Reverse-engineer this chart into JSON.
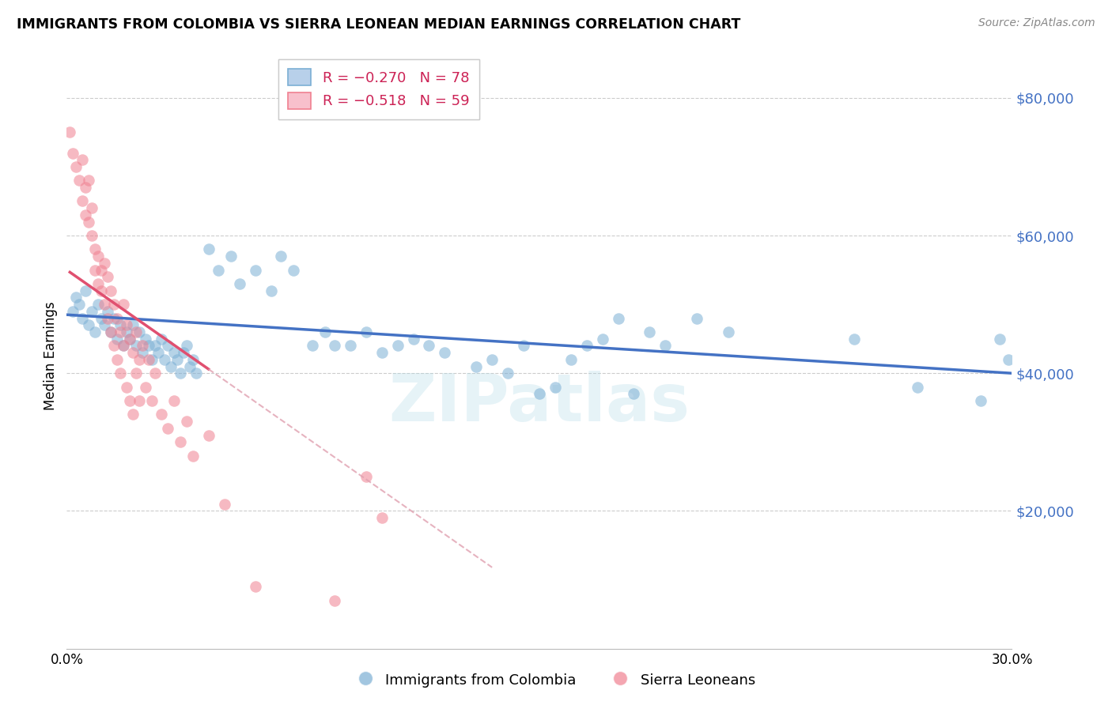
{
  "title": "IMMIGRANTS FROM COLOMBIA VS SIERRA LEONEAN MEDIAN EARNINGS CORRELATION CHART",
  "source": "Source: ZipAtlas.com",
  "ylabel": "Median Earnings",
  "xlim": [
    0.0,
    0.3
  ],
  "ylim": [
    0,
    85000
  ],
  "yticks": [
    20000,
    40000,
    60000,
    80000
  ],
  "ytick_labels": [
    "$20,000",
    "$40,000",
    "$60,000",
    "$80,000"
  ],
  "colombia_legend": "Immigrants from Colombia",
  "sierraleone_legend": "Sierra Leoneans",
  "colombia_color": "#7bafd4",
  "sierraleone_color": "#f08090",
  "trendline_colombia_color": "#4472c4",
  "trendline_sierraleone_color": "#e05070",
  "trendline_sierraleone_dashed_color": "#e0a0b0",
  "watermark": "ZIPatlas",
  "colombia_R": -0.27,
  "colombia_N": 78,
  "sierraleone_R": -0.518,
  "sierraleone_N": 59,
  "colombia_points": [
    [
      0.002,
      49000
    ],
    [
      0.003,
      51000
    ],
    [
      0.004,
      50000
    ],
    [
      0.005,
      48000
    ],
    [
      0.006,
      52000
    ],
    [
      0.007,
      47000
    ],
    [
      0.008,
      49000
    ],
    [
      0.009,
      46000
    ],
    [
      0.01,
      50000
    ],
    [
      0.011,
      48000
    ],
    [
      0.012,
      47000
    ],
    [
      0.013,
      49000
    ],
    [
      0.014,
      46000
    ],
    [
      0.015,
      48000
    ],
    [
      0.016,
      45000
    ],
    [
      0.017,
      47000
    ],
    [
      0.018,
      44000
    ],
    [
      0.019,
      46000
    ],
    [
      0.02,
      45000
    ],
    [
      0.021,
      47000
    ],
    [
      0.022,
      44000
    ],
    [
      0.023,
      46000
    ],
    [
      0.024,
      43000
    ],
    [
      0.025,
      45000
    ],
    [
      0.026,
      44000
    ],
    [
      0.027,
      42000
    ],
    [
      0.028,
      44000
    ],
    [
      0.029,
      43000
    ],
    [
      0.03,
      45000
    ],
    [
      0.031,
      42000
    ],
    [
      0.032,
      44000
    ],
    [
      0.033,
      41000
    ],
    [
      0.034,
      43000
    ],
    [
      0.035,
      42000
    ],
    [
      0.036,
      40000
    ],
    [
      0.037,
      43000
    ],
    [
      0.038,
      44000
    ],
    [
      0.039,
      41000
    ],
    [
      0.04,
      42000
    ],
    [
      0.041,
      40000
    ],
    [
      0.045,
      58000
    ],
    [
      0.048,
      55000
    ],
    [
      0.052,
      57000
    ],
    [
      0.055,
      53000
    ],
    [
      0.06,
      55000
    ],
    [
      0.065,
      52000
    ],
    [
      0.068,
      57000
    ],
    [
      0.072,
      55000
    ],
    [
      0.078,
      44000
    ],
    [
      0.082,
      46000
    ],
    [
      0.085,
      44000
    ],
    [
      0.09,
      44000
    ],
    [
      0.095,
      46000
    ],
    [
      0.1,
      43000
    ],
    [
      0.105,
      44000
    ],
    [
      0.11,
      45000
    ],
    [
      0.115,
      44000
    ],
    [
      0.12,
      43000
    ],
    [
      0.13,
      41000
    ],
    [
      0.135,
      42000
    ],
    [
      0.14,
      40000
    ],
    [
      0.145,
      44000
    ],
    [
      0.15,
      37000
    ],
    [
      0.155,
      38000
    ],
    [
      0.16,
      42000
    ],
    [
      0.165,
      44000
    ],
    [
      0.17,
      45000
    ],
    [
      0.175,
      48000
    ],
    [
      0.18,
      37000
    ],
    [
      0.185,
      46000
    ],
    [
      0.19,
      44000
    ],
    [
      0.2,
      48000
    ],
    [
      0.21,
      46000
    ],
    [
      0.25,
      45000
    ],
    [
      0.27,
      38000
    ],
    [
      0.29,
      36000
    ],
    [
      0.296,
      45000
    ],
    [
      0.299,
      42000
    ]
  ],
  "sierraleone_points": [
    [
      0.001,
      75000
    ],
    [
      0.002,
      72000
    ],
    [
      0.003,
      70000
    ],
    [
      0.004,
      68000
    ],
    [
      0.005,
      71000
    ],
    [
      0.005,
      65000
    ],
    [
      0.006,
      63000
    ],
    [
      0.006,
      67000
    ],
    [
      0.007,
      68000
    ],
    [
      0.007,
      62000
    ],
    [
      0.008,
      64000
    ],
    [
      0.008,
      60000
    ],
    [
      0.009,
      55000
    ],
    [
      0.009,
      58000
    ],
    [
      0.01,
      53000
    ],
    [
      0.01,
      57000
    ],
    [
      0.011,
      55000
    ],
    [
      0.011,
      52000
    ],
    [
      0.012,
      56000
    ],
    [
      0.012,
      50000
    ],
    [
      0.013,
      54000
    ],
    [
      0.013,
      48000
    ],
    [
      0.014,
      52000
    ],
    [
      0.014,
      46000
    ],
    [
      0.015,
      50000
    ],
    [
      0.015,
      44000
    ],
    [
      0.016,
      48000
    ],
    [
      0.016,
      42000
    ],
    [
      0.017,
      46000
    ],
    [
      0.017,
      40000
    ],
    [
      0.018,
      50000
    ],
    [
      0.018,
      44000
    ],
    [
      0.019,
      47000
    ],
    [
      0.019,
      38000
    ],
    [
      0.02,
      45000
    ],
    [
      0.02,
      36000
    ],
    [
      0.021,
      43000
    ],
    [
      0.021,
      34000
    ],
    [
      0.022,
      46000
    ],
    [
      0.022,
      40000
    ],
    [
      0.023,
      42000
    ],
    [
      0.023,
      36000
    ],
    [
      0.024,
      44000
    ],
    [
      0.025,
      38000
    ],
    [
      0.026,
      42000
    ],
    [
      0.027,
      36000
    ],
    [
      0.028,
      40000
    ],
    [
      0.03,
      34000
    ],
    [
      0.032,
      32000
    ],
    [
      0.034,
      36000
    ],
    [
      0.036,
      30000
    ],
    [
      0.038,
      33000
    ],
    [
      0.04,
      28000
    ],
    [
      0.045,
      31000
    ],
    [
      0.05,
      21000
    ],
    [
      0.06,
      9000
    ],
    [
      0.085,
      7000
    ],
    [
      0.095,
      25000
    ],
    [
      0.1,
      19000
    ]
  ]
}
